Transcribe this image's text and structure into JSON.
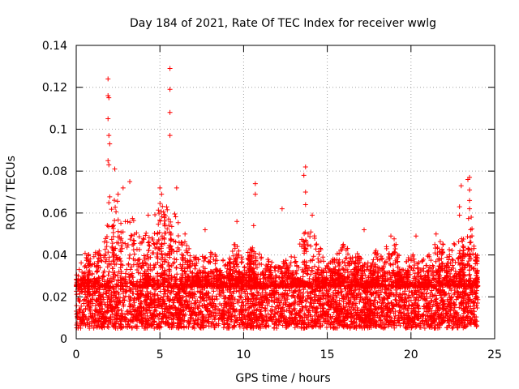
{
  "chart_data": {
    "type": "scatter",
    "title": "Day 184 of 2021, Rate Of TEC Index for receiver wwlg",
    "xlabel": "GPS time / hours",
    "ylabel": "ROTI / TECUs",
    "xlim": [
      0,
      25
    ],
    "ylim": [
      0,
      0.14
    ],
    "xticks": [
      0,
      5,
      10,
      15,
      20,
      25
    ],
    "yticks": [
      0,
      0.02,
      0.04,
      0.06,
      0.08,
      0.1,
      0.12,
      0.14
    ],
    "xtick_labels": [
      "0",
      "5",
      "10",
      "15",
      "20",
      "25"
    ],
    "ytick_labels": [
      "0",
      "0.02",
      "0.04",
      "0.06",
      "0.08",
      "0.1",
      "0.12",
      "0.14"
    ],
    "grid": true,
    "marker": "+",
    "color": "#ff0000",
    "x_range_of_data": [
      0,
      24
    ],
    "baseline_band": [
      0.005,
      0.025
    ],
    "notable_points": [
      {
        "x": 1.9,
        "y": 0.124
      },
      {
        "x": 1.9,
        "y": 0.116
      },
      {
        "x": 1.95,
        "y": 0.115
      },
      {
        "x": 1.9,
        "y": 0.105
      },
      {
        "x": 1.95,
        "y": 0.097
      },
      {
        "x": 2.0,
        "y": 0.093
      },
      {
        "x": 1.9,
        "y": 0.085
      },
      {
        "x": 1.95,
        "y": 0.083
      },
      {
        "x": 2.3,
        "y": 0.081
      },
      {
        "x": 5.6,
        "y": 0.129
      },
      {
        "x": 5.6,
        "y": 0.119
      },
      {
        "x": 5.6,
        "y": 0.108
      },
      {
        "x": 5.6,
        "y": 0.097
      },
      {
        "x": 10.7,
        "y": 0.074
      },
      {
        "x": 10.7,
        "y": 0.069
      },
      {
        "x": 12.3,
        "y": 0.062
      },
      {
        "x": 13.7,
        "y": 0.082
      },
      {
        "x": 13.6,
        "y": 0.078
      },
      {
        "x": 13.7,
        "y": 0.07
      },
      {
        "x": 13.7,
        "y": 0.064
      },
      {
        "x": 14.1,
        "y": 0.059
      },
      {
        "x": 9.6,
        "y": 0.056
      },
      {
        "x": 10.6,
        "y": 0.054
      },
      {
        "x": 17.2,
        "y": 0.052
      },
      {
        "x": 23.5,
        "y": 0.077
      },
      {
        "x": 23.4,
        "y": 0.076
      },
      {
        "x": 23.5,
        "y": 0.071
      },
      {
        "x": 23.5,
        "y": 0.066
      },
      {
        "x": 23.5,
        "y": 0.062
      },
      {
        "x": 23.0,
        "y": 0.073
      },
      {
        "x": 22.9,
        "y": 0.063
      },
      {
        "x": 22.9,
        "y": 0.059
      },
      {
        "x": 23.6,
        "y": 0.058
      },
      {
        "x": 5.0,
        "y": 0.072
      },
      {
        "x": 5.1,
        "y": 0.069
      },
      {
        "x": 6.0,
        "y": 0.072
      },
      {
        "x": 3.2,
        "y": 0.075
      },
      {
        "x": 2.8,
        "y": 0.072
      },
      {
        "x": 2.5,
        "y": 0.069
      },
      {
        "x": 4.3,
        "y": 0.059
      },
      {
        "x": 6.5,
        "y": 0.05
      },
      {
        "x": 7.7,
        "y": 0.052
      },
      {
        "x": 18.8,
        "y": 0.049
      },
      {
        "x": 21.5,
        "y": 0.05
      },
      {
        "x": 20.3,
        "y": 0.049
      }
    ],
    "activity_profile": [
      {
        "x": 0.0,
        "y_max": 0.03
      },
      {
        "x": 0.5,
        "y_max": 0.041
      },
      {
        "x": 1.0,
        "y_max": 0.04
      },
      {
        "x": 1.5,
        "y_max": 0.045
      },
      {
        "x": 2.0,
        "y_max": 0.07
      },
      {
        "x": 2.5,
        "y_max": 0.068
      },
      {
        "x": 3.0,
        "y_max": 0.07
      },
      {
        "x": 3.5,
        "y_max": 0.055
      },
      {
        "x": 4.0,
        "y_max": 0.048
      },
      {
        "x": 4.5,
        "y_max": 0.055
      },
      {
        "x": 5.0,
        "y_max": 0.068
      },
      {
        "x": 5.5,
        "y_max": 0.062
      },
      {
        "x": 6.0,
        "y_max": 0.06
      },
      {
        "x": 6.5,
        "y_max": 0.048
      },
      {
        "x": 7.0,
        "y_max": 0.04
      },
      {
        "x": 7.5,
        "y_max": 0.04
      },
      {
        "x": 8.0,
        "y_max": 0.042
      },
      {
        "x": 8.5,
        "y_max": 0.04
      },
      {
        "x": 9.0,
        "y_max": 0.038
      },
      {
        "x": 9.5,
        "y_max": 0.046
      },
      {
        "x": 10.0,
        "y_max": 0.038
      },
      {
        "x": 10.5,
        "y_max": 0.045
      },
      {
        "x": 11.0,
        "y_max": 0.04
      },
      {
        "x": 11.5,
        "y_max": 0.038
      },
      {
        "x": 12.0,
        "y_max": 0.035
      },
      {
        "x": 12.5,
        "y_max": 0.038
      },
      {
        "x": 13.0,
        "y_max": 0.04
      },
      {
        "x": 13.5,
        "y_max": 0.05
      },
      {
        "x": 14.0,
        "y_max": 0.055
      },
      {
        "x": 14.5,
        "y_max": 0.045
      },
      {
        "x": 15.0,
        "y_max": 0.035
      },
      {
        "x": 15.5,
        "y_max": 0.04
      },
      {
        "x": 16.0,
        "y_max": 0.046
      },
      {
        "x": 16.5,
        "y_max": 0.04
      },
      {
        "x": 17.0,
        "y_max": 0.042
      },
      {
        "x": 17.5,
        "y_max": 0.036
      },
      {
        "x": 18.0,
        "y_max": 0.044
      },
      {
        "x": 18.5,
        "y_max": 0.046
      },
      {
        "x": 19.0,
        "y_max": 0.048
      },
      {
        "x": 19.5,
        "y_max": 0.034
      },
      {
        "x": 20.0,
        "y_max": 0.042
      },
      {
        "x": 20.5,
        "y_max": 0.036
      },
      {
        "x": 21.0,
        "y_max": 0.04
      },
      {
        "x": 21.5,
        "y_max": 0.048
      },
      {
        "x": 22.0,
        "y_max": 0.045
      },
      {
        "x": 22.5,
        "y_max": 0.045
      },
      {
        "x": 23.0,
        "y_max": 0.05
      },
      {
        "x": 23.5,
        "y_max": 0.06
      },
      {
        "x": 24.0,
        "y_max": 0.04
      }
    ]
  }
}
